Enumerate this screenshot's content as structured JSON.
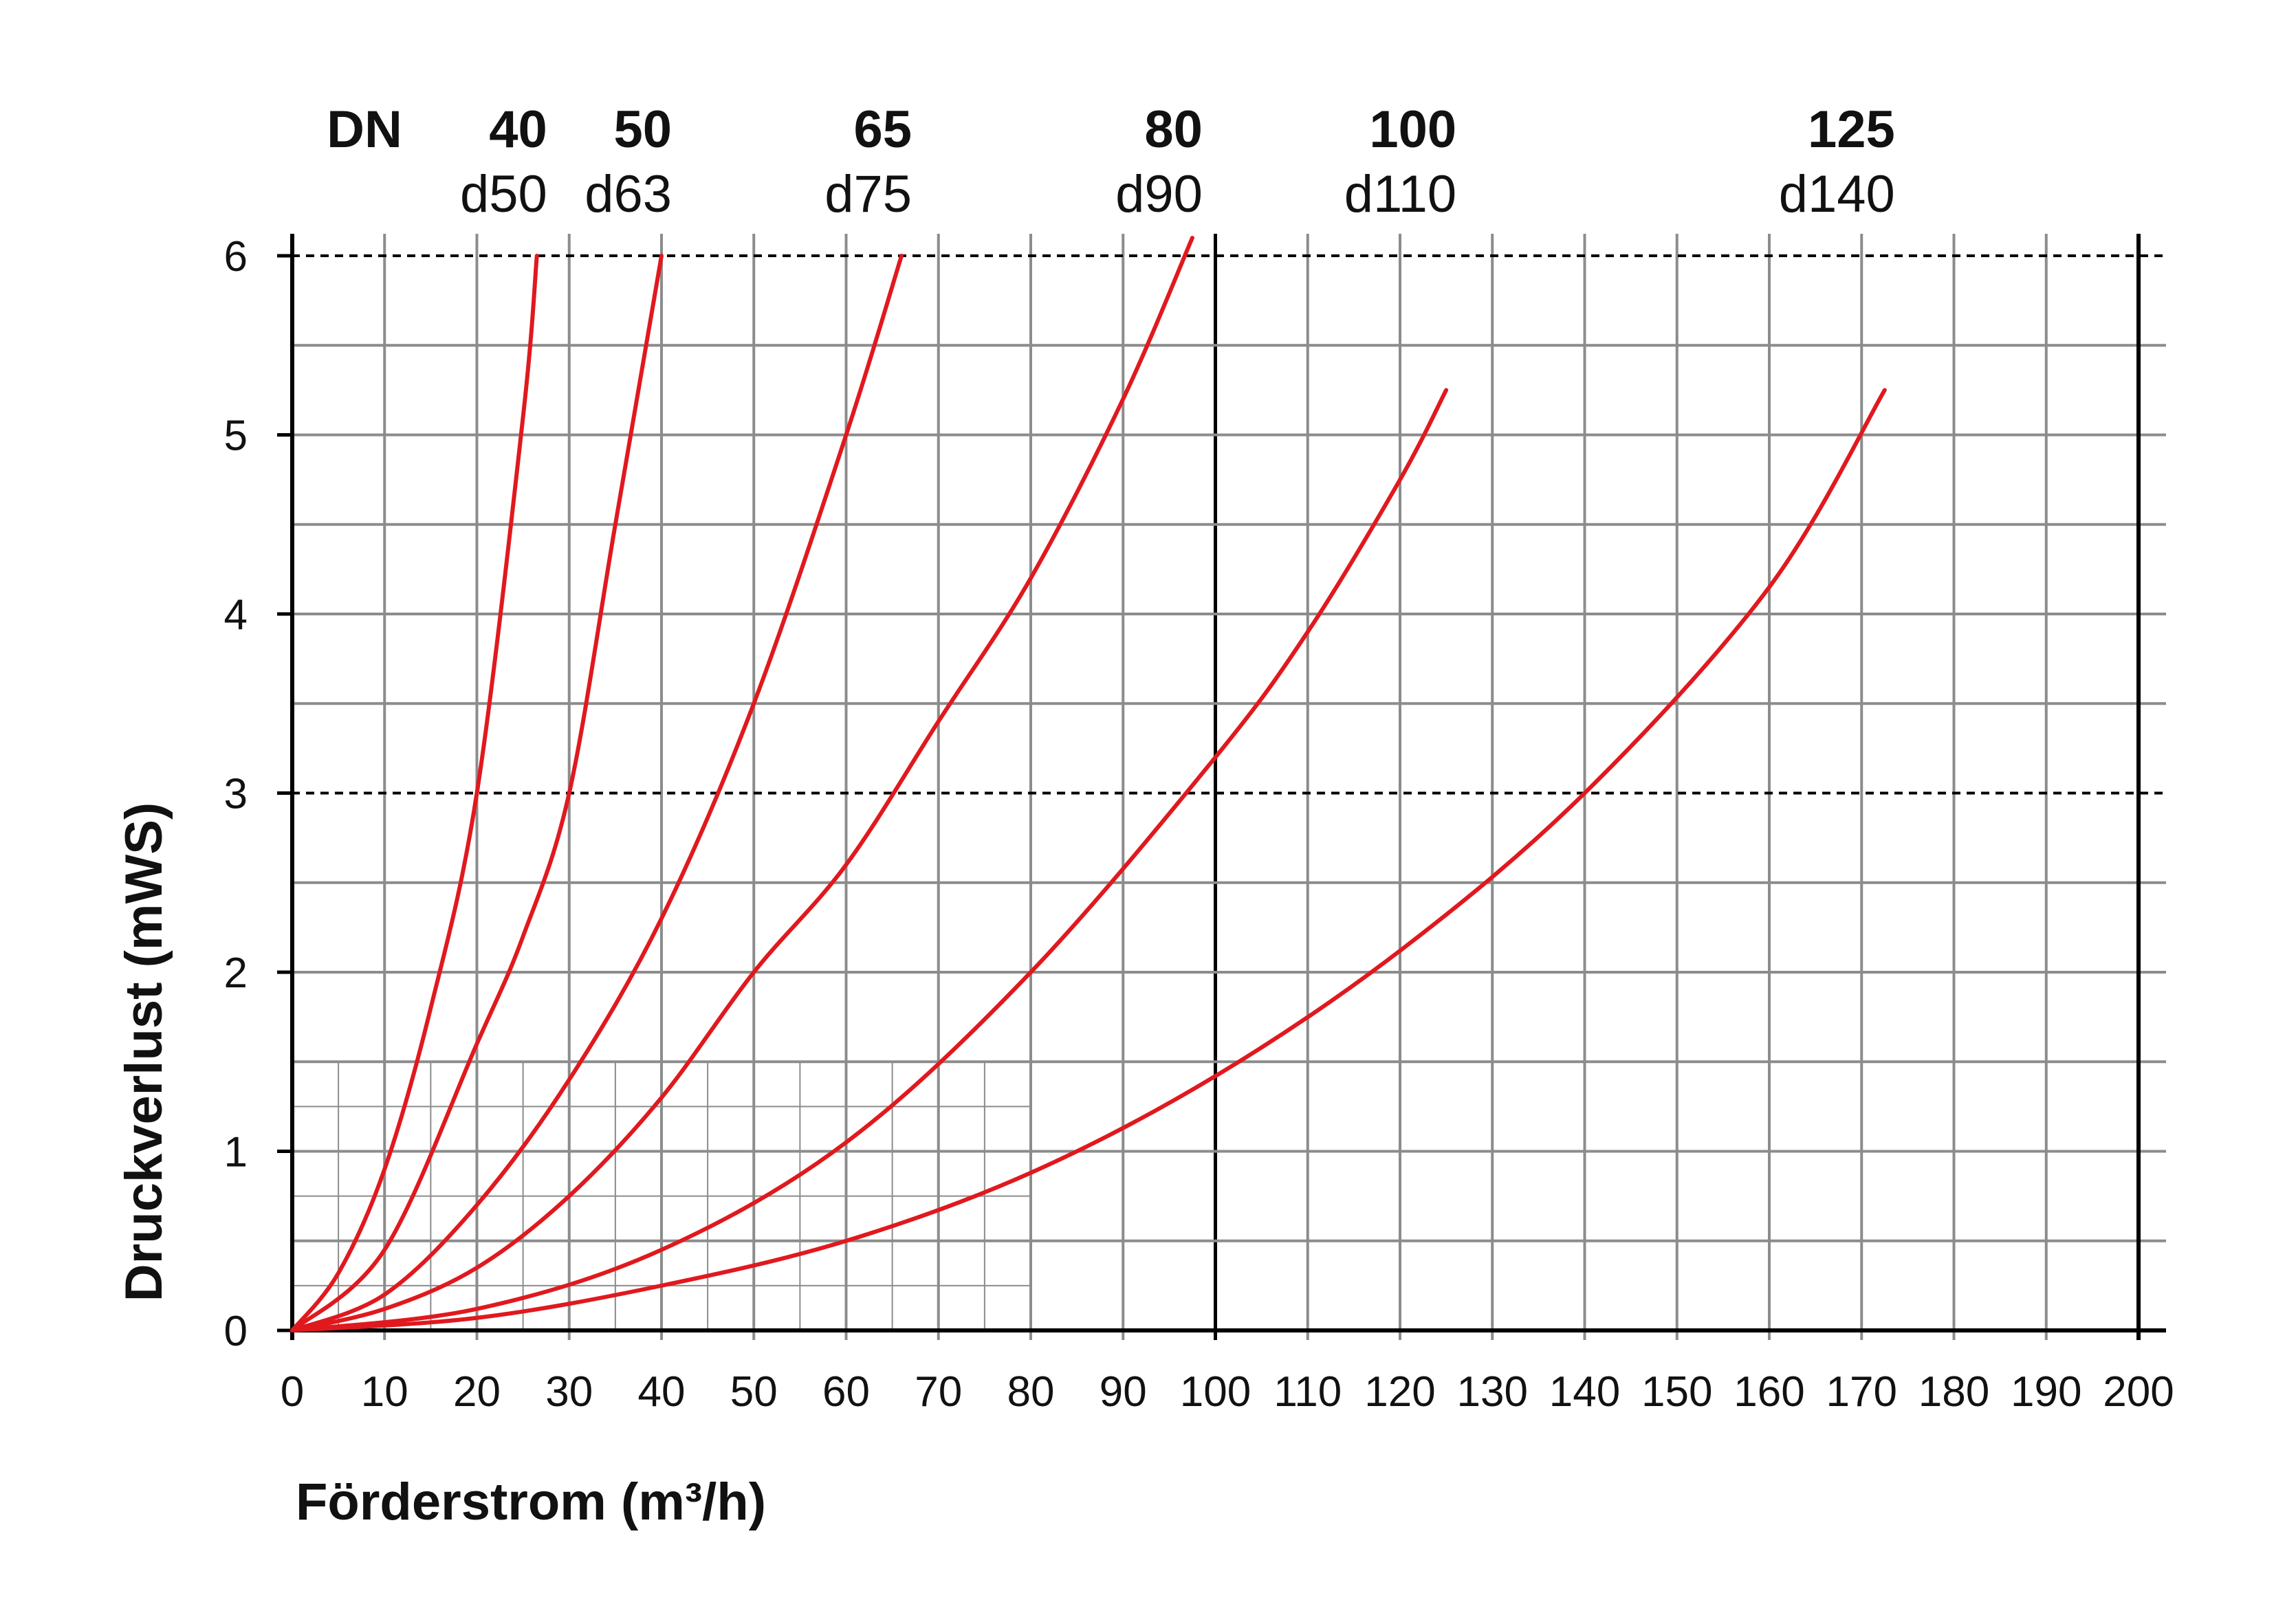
{
  "chart_data": {
    "type": "line",
    "title": "",
    "xlabel": "Förderstrom (m³/h)",
    "ylabel": "Druckverlust (mWS)",
    "xlim": [
      0,
      200
    ],
    "ylim": [
      0,
      6
    ],
    "x_ticks": [
      "0",
      "10",
      "20",
      "30",
      "40",
      "50",
      "60",
      "70",
      "80",
      "90",
      "100",
      "110",
      "120",
      "130",
      "140",
      "150",
      "160",
      "170",
      "180",
      "190",
      "200"
    ],
    "y_ticks": [
      "0",
      "1",
      "2",
      "3",
      "4",
      "5",
      "6"
    ],
    "dashed_reference_lines_y": [
      3,
      6
    ],
    "grid": true,
    "dn_header": "DN",
    "colors": {
      "curve": "#e0191e",
      "grid": "#8c8c8c",
      "axis": "#000000"
    },
    "series": [
      {
        "name": "40",
        "label_d": "d50",
        "x": [
          0,
          5,
          10,
          15,
          20,
          25,
          26.5
        ],
        "y": [
          0,
          0.32,
          0.9,
          1.8,
          3.0,
          5.1,
          6.0
        ]
      },
      {
        "name": "50",
        "label_d": "d63",
        "x": [
          0,
          10,
          20,
          25,
          30,
          35,
          40
        ],
        "y": [
          0,
          0.45,
          1.6,
          2.2,
          3.0,
          4.5,
          6.0
        ]
      },
      {
        "name": "65",
        "label_d": "d75",
        "x": [
          0,
          10,
          20,
          30,
          40,
          50,
          60,
          66
        ],
        "y": [
          0,
          0.2,
          0.7,
          1.4,
          2.3,
          3.5,
          5.0,
          6.0
        ]
      },
      {
        "name": "80",
        "label_d": "d90",
        "x": [
          0,
          10,
          20,
          30,
          40,
          50,
          60,
          70,
          80,
          90,
          97.5
        ],
        "y": [
          0,
          0.12,
          0.35,
          0.75,
          1.3,
          2.0,
          2.6,
          3.4,
          4.2,
          5.2,
          6.1
        ]
      },
      {
        "name": "100",
        "label_d": "d110",
        "x": [
          0,
          20,
          40,
          60,
          80,
          100,
          110,
          120,
          125
        ],
        "y": [
          0,
          0.12,
          0.45,
          1.05,
          2.0,
          3.2,
          3.9,
          4.75,
          5.25
        ]
      },
      {
        "name": "125",
        "label_d": "d140",
        "x": [
          0,
          20,
          40,
          60,
          80,
          100,
          120,
          140,
          160,
          172.5
        ],
        "y": [
          0,
          0.07,
          0.25,
          0.5,
          0.88,
          1.42,
          2.12,
          3.0,
          4.15,
          5.25
        ]
      }
    ]
  }
}
